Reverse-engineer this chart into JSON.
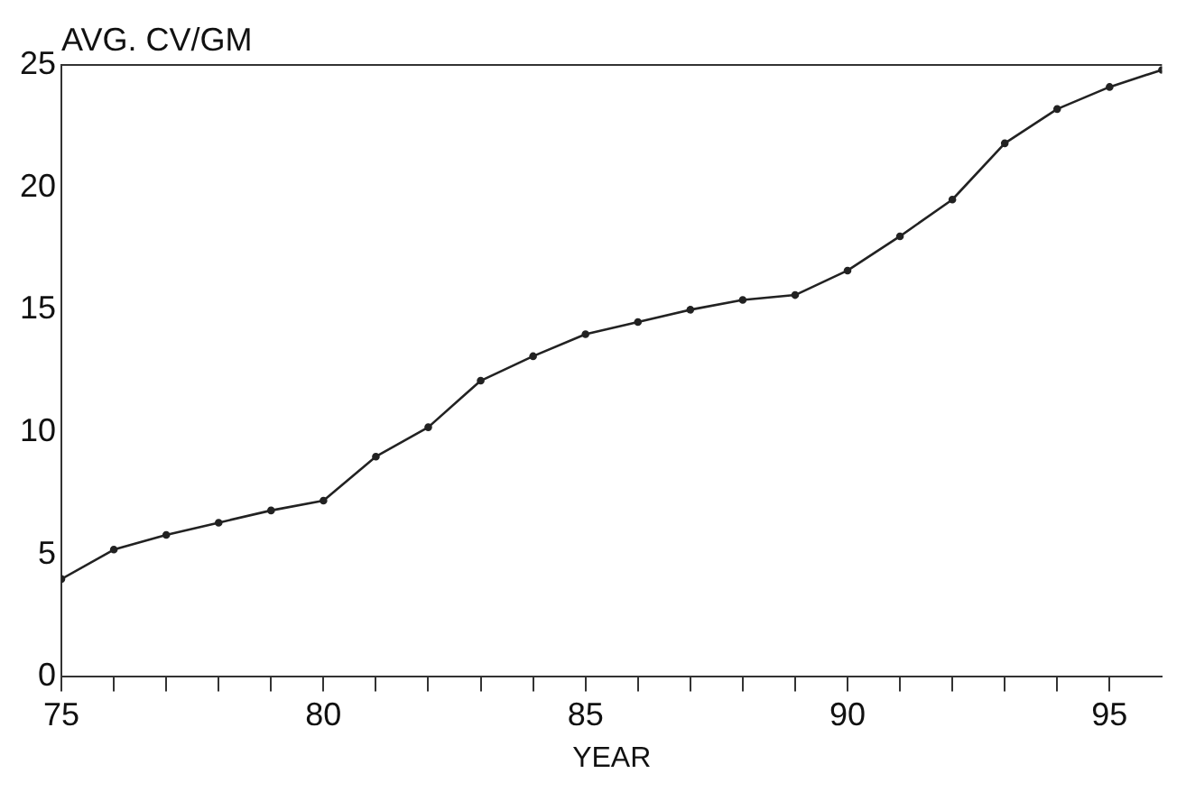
{
  "chart_data": {
    "type": "line",
    "ylabel": "AVG. CV/GM",
    "xlabel": "YEAR",
    "x": [
      75,
      76,
      77,
      78,
      79,
      80,
      81,
      82,
      83,
      84,
      85,
      86,
      87,
      88,
      89,
      90,
      91,
      92,
      93,
      94,
      95,
      96
    ],
    "series": [
      {
        "color": "#222222",
        "values": [
          4.0,
          5.2,
          5.8,
          6.3,
          6.8,
          7.2,
          9.0,
          10.2,
          12.1,
          13.1,
          14.0,
          14.5,
          15.0,
          15.4,
          15.6,
          16.6,
          18.0,
          19.5,
          21.8,
          23.2,
          24.1,
          24.8
        ]
      }
    ],
    "xlim": [
      75,
      96
    ],
    "ylim": [
      0,
      25
    ],
    "xticks": [
      75,
      {
        "value": 76,
        "label": null
      },
      {
        "value": 77,
        "label": null
      },
      {
        "value": 78,
        "label": null
      },
      {
        "value": 79,
        "label": null
      },
      80,
      {
        "value": 81,
        "label": null
      },
      {
        "value": 82,
        "label": null
      },
      {
        "value": 83,
        "label": null
      },
      {
        "value": 84,
        "label": null
      },
      85,
      {
        "value": 86,
        "label": null
      },
      {
        "value": 87,
        "label": null
      },
      {
        "value": 88,
        "label": null
      },
      {
        "value": 89,
        "label": null
      },
      90,
      {
        "value": 91,
        "label": null
      },
      {
        "value": 92,
        "label": null
      },
      {
        "value": 93,
        "label": null
      },
      {
        "value": 94,
        "label": null
      },
      95
    ],
    "yticks": [
      0,
      5,
      10,
      15,
      20,
      25
    ],
    "grid": false,
    "legend": false,
    "marker": "circle",
    "line_style": "solid"
  }
}
